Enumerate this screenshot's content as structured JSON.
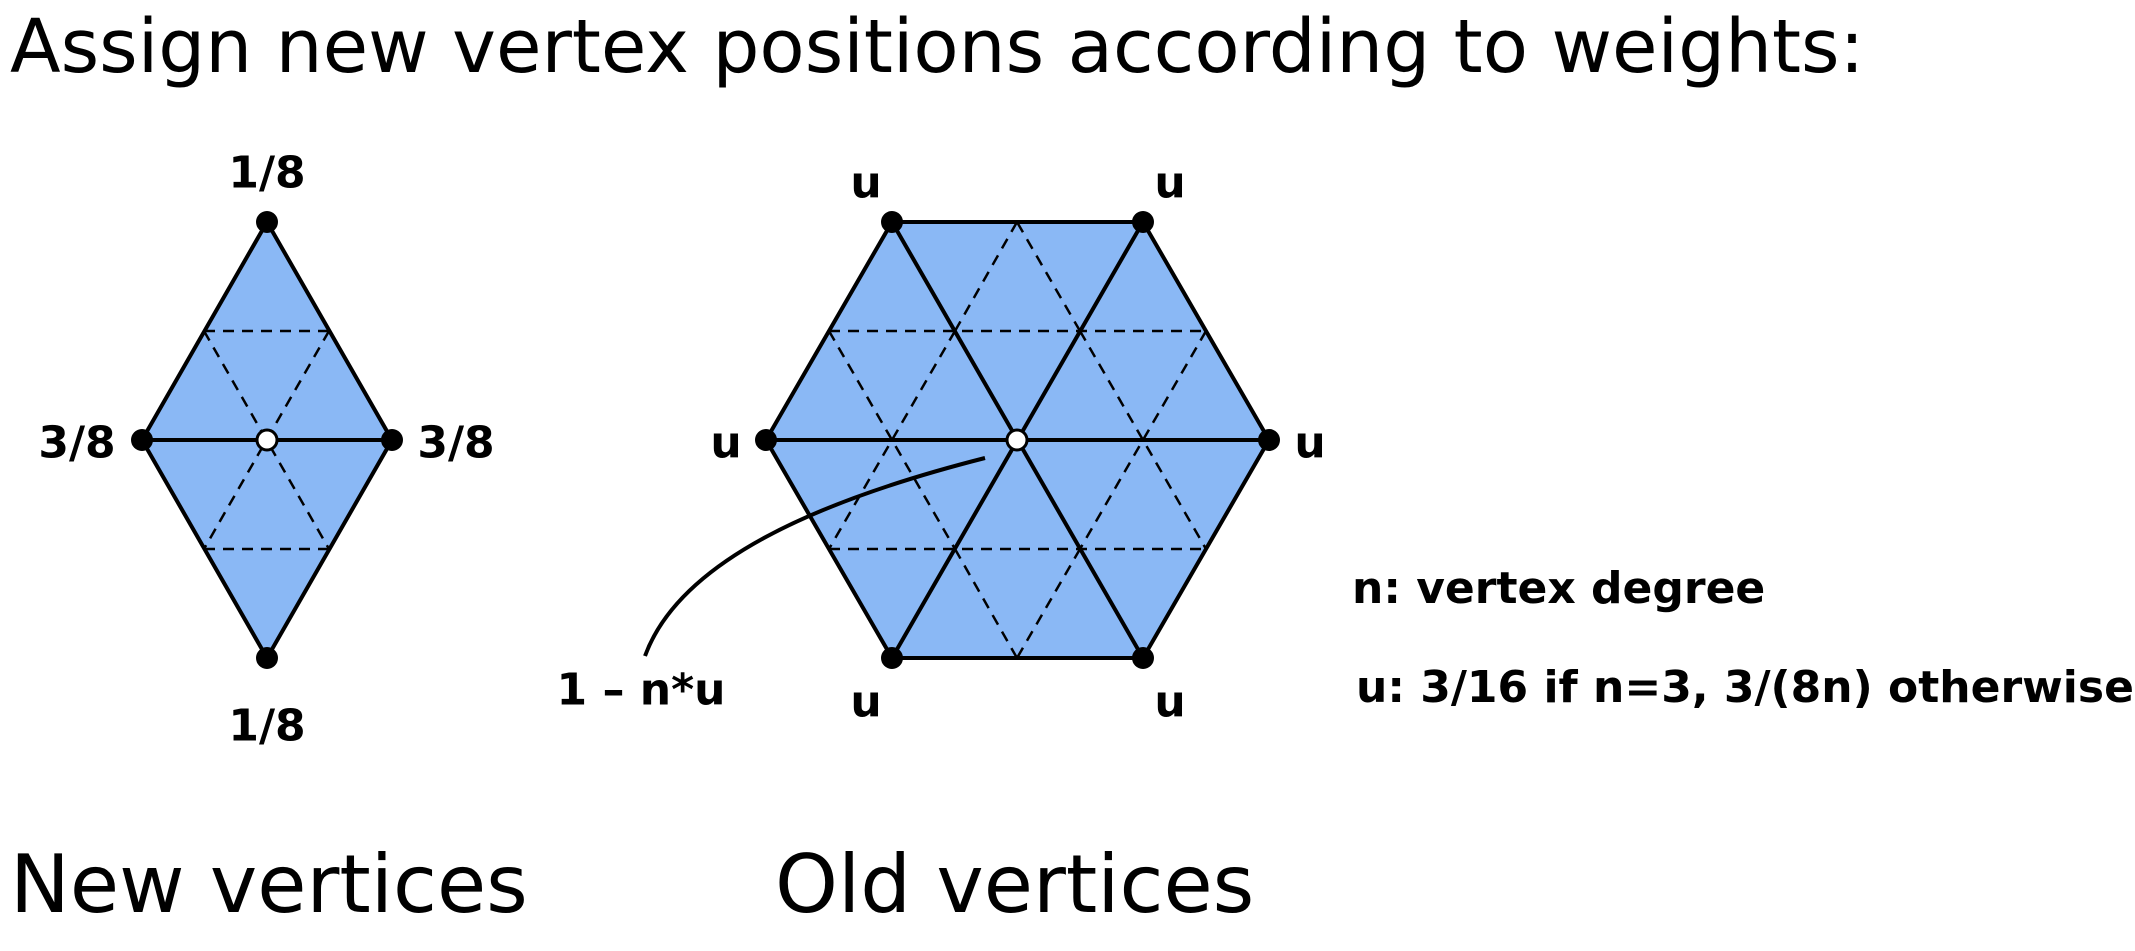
{
  "title": "Assign new vertex positions according to weights:",
  "colors": {
    "fill": "#8ab8f5",
    "stroke": "#000000",
    "open_vertex": "#ffffff"
  },
  "new_vertices": {
    "caption": "New vertices",
    "top_weight": "1/8",
    "left_weight": "3/8",
    "right_weight": "3/8",
    "bottom_weight": "1/8"
  },
  "old_vertices": {
    "caption": "Old vertices",
    "neighbor_weight": "u",
    "center_weight": "1 – n*u"
  },
  "legend": {
    "n_def": "n: vertex degree",
    "u_def": "u: 3/16 if n=3, 3/(8n) otherwise"
  }
}
